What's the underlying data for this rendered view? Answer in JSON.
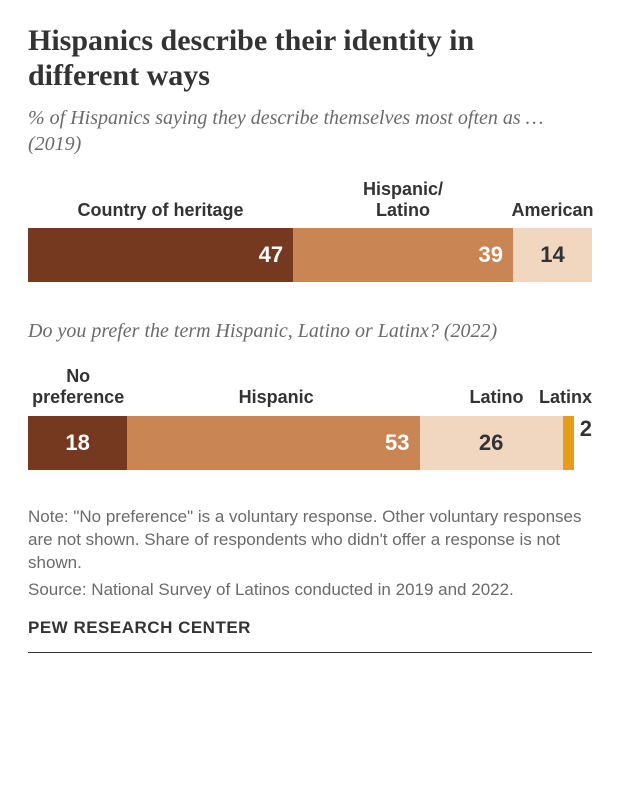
{
  "title": "Hispanics describe their identity in different ways",
  "title_fontsize": 30,
  "subtitle1": "% of Hispanics saying they describe themselves most often as … (2019)",
  "subtitle2": "Do you prefer the term Hispanic, Latino or Latinx? (2022)",
  "subtitle_fontsize": 20,
  "label_fontsize": 18,
  "value_fontsize": 22,
  "note_fontsize": 17,
  "logo_fontsize": 17,
  "colors": {
    "dark_brown": "#75391f",
    "mid_brown": "#c98553",
    "light_tan": "#f1d7c0",
    "gold": "#e49e19",
    "text_dark": "#333333",
    "text_gray": "#6a6a6a",
    "white": "#ffffff",
    "bg": "#ffffff"
  },
  "chart1": {
    "type": "stacked-bar",
    "segments": [
      {
        "label": "Country of heritage",
        "value": 47,
        "color": "#75391f",
        "text_color": "#ffffff",
        "align": "right"
      },
      {
        "label": "Hispanic/\nLatino",
        "value": 39,
        "color": "#c98553",
        "text_color": "#ffffff",
        "align": "right"
      },
      {
        "label": "American",
        "value": 14,
        "color": "#f1d7c0",
        "text_color": "#333333",
        "align": "center"
      }
    ]
  },
  "chart2": {
    "type": "stacked-bar",
    "segments": [
      {
        "label": "No preference",
        "value": 18,
        "color": "#75391f",
        "text_color": "#ffffff",
        "align": "center"
      },
      {
        "label": "Hispanic",
        "value": 53,
        "color": "#c98553",
        "text_color": "#ffffff",
        "align": "right"
      },
      {
        "label": "Latino",
        "value": 26,
        "color": "#f1d7c0",
        "text_color": "#333333",
        "align": "center"
      },
      {
        "label": "Latinx",
        "value": 2,
        "color": "#e49e19",
        "text_color": "#333333",
        "align": "outside"
      }
    ]
  },
  "note": "Note: \"No preference\" is a voluntary response. Other voluntary responses are not shown. Share of respondents who didn't offer a response is not shown.",
  "source": "Source: National Survey of Latinos conducted in 2019 and 2022.",
  "logo": "PEW RESEARCH CENTER"
}
